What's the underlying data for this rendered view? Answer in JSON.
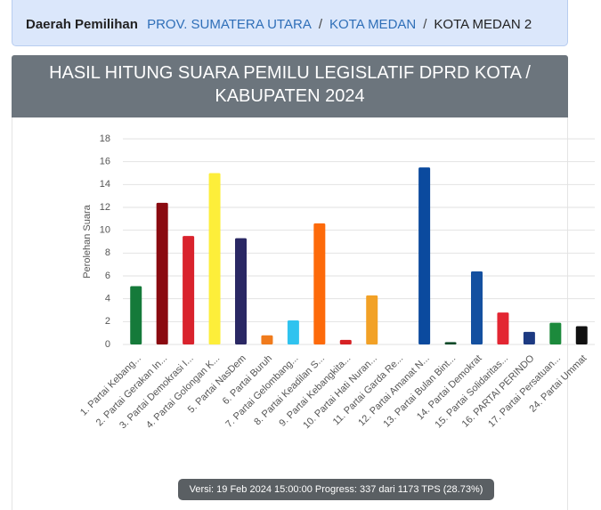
{
  "breadcrumb": {
    "label": "Daerah Pemilihan",
    "separator": "/",
    "items": [
      "PROV. SUMATERA UTARA",
      "KOTA MEDAN",
      "KOTA MEDAN 2"
    ]
  },
  "card": {
    "title": "HASIL HITUNG SUARA PEMILU LEGISLATIF DPRD KOTA / KABUPATEN 2024"
  },
  "chart_data": {
    "type": "bar",
    "y_label": "Perolehan Suara",
    "categories": [
      "1. Partai Kebang...",
      "2. Partai Gerakan In...",
      "3. Partai Demokrasi I...",
      "4. Partai Golongan K...",
      "5. Partai NasDem",
      "6. Partai Buruh",
      "7. Partai Gelombang...",
      "8. Partai Keadilan S...",
      "9. Partai Kebangkita...",
      "10. Partai Hati Nuran...",
      "11. Partai Garda Re...",
      "12. Partai Amanat N...",
      "13. Partai Bulan Bint...",
      "14. Partai Demokrat",
      "15. Partai Solidaritas...",
      "16. PARTAI PERINDO",
      "17. Partai Persatuan...",
      "24. Partai Ummat"
    ],
    "values": [
      5.1,
      12.4,
      9.5,
      15.0,
      9.3,
      0.8,
      2.1,
      10.6,
      0.4,
      4.3,
      0,
      15.5,
      0.2,
      6.4,
      2.8,
      1.1,
      1.9,
      1.6
    ],
    "colors": [
      "#157a3a",
      "#8a0a10",
      "#d9232d",
      "#fdee3a",
      "#2a2864",
      "#f07b1c",
      "#2fc3ef",
      "#fd6a0a",
      "#d62124",
      "#f2a126",
      "#888888",
      "#0b4a9e",
      "#0d4a29",
      "#1450a0",
      "#e32632",
      "#1d3a82",
      "#1c8a3c",
      "#111111"
    ],
    "ylim": [
      0,
      18
    ],
    "yticks": [
      0,
      2,
      4,
      6,
      8,
      10,
      12,
      14,
      16,
      18
    ],
    "grid": true
  },
  "footer": {
    "text": "Versi: 19 Feb 2024 15:00:00 Progress: 337 dari 1173 TPS (28.73%)"
  }
}
